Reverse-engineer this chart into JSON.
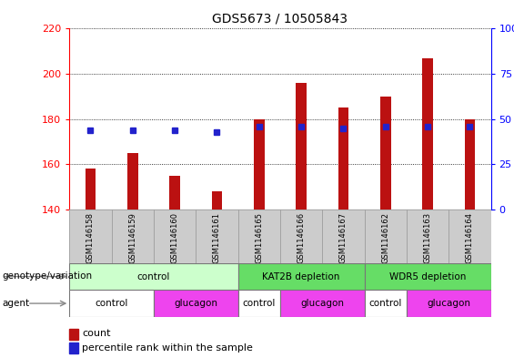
{
  "title": "GDS5673 / 10505843",
  "samples": [
    "GSM1146158",
    "GSM1146159",
    "GSM1146160",
    "GSM1146161",
    "GSM1146165",
    "GSM1146166",
    "GSM1146167",
    "GSM1146162",
    "GSM1146163",
    "GSM1146164"
  ],
  "counts": [
    158,
    165,
    155,
    148,
    180,
    196,
    185,
    190,
    207,
    180
  ],
  "percentile_ranks": [
    44,
    44,
    44,
    43,
    46,
    46,
    45,
    46,
    46,
    46
  ],
  "ymin": 140,
  "ymax": 220,
  "yticks": [
    140,
    160,
    180,
    200,
    220
  ],
  "y2min": 0,
  "y2max": 100,
  "y2ticks": [
    0,
    25,
    50,
    75,
    100
  ],
  "bar_color": "#bb1111",
  "percentile_color": "#2222cc",
  "bg_color": "#cccccc",
  "plot_bg": "#ffffff",
  "groups": [
    {
      "label": "control",
      "start": 0,
      "end": 4,
      "color": "#ccffcc"
    },
    {
      "label": "KAT2B depletion",
      "start": 4,
      "end": 7,
      "color": "#66dd66"
    },
    {
      "label": "WDR5 depletion",
      "start": 7,
      "end": 10,
      "color": "#66dd66"
    }
  ],
  "agents": [
    {
      "label": "control",
      "start": 0,
      "end": 2,
      "color": "#ffffff"
    },
    {
      "label": "glucagon",
      "start": 2,
      "end": 4,
      "color": "#ee44ee"
    },
    {
      "label": "control",
      "start": 4,
      "end": 5,
      "color": "#ffffff"
    },
    {
      "label": "glucagon",
      "start": 5,
      "end": 7,
      "color": "#ee44ee"
    },
    {
      "label": "control",
      "start": 7,
      "end": 8,
      "color": "#ffffff"
    },
    {
      "label": "glucagon",
      "start": 8,
      "end": 10,
      "color": "#ee44ee"
    }
  ],
  "legend_count_label": "count",
  "legend_pct_label": "percentile rank within the sample",
  "genotype_label": "genotype/variation",
  "agent_label": "agent",
  "bar_width": 0.25
}
